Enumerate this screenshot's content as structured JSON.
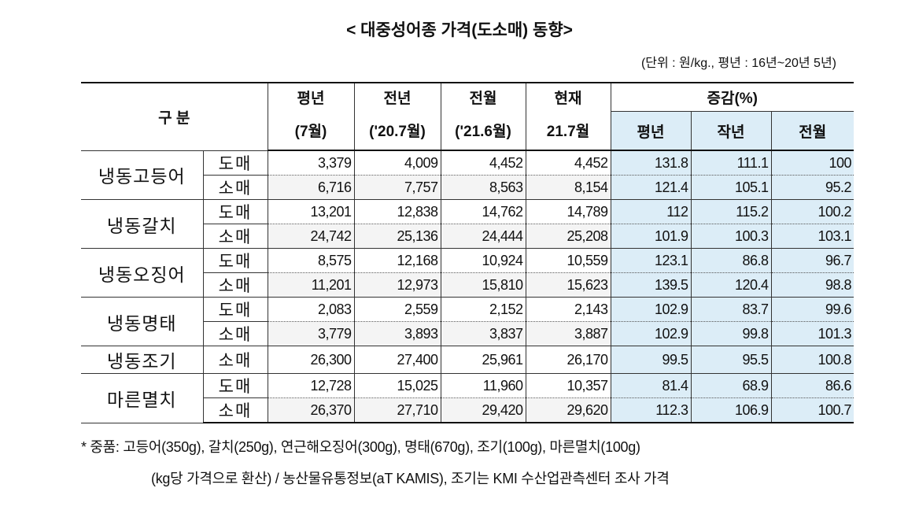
{
  "header": {
    "title": "< 대중성어종 가격(도소매) 동향>",
    "unit": "(단위 : 원/kg., 평년 : 16년~20년 5년)"
  },
  "table": {
    "head1": [
      "구 분",
      "평년",
      "전년",
      "전월",
      "현재",
      "증감(%)"
    ],
    "head2": [
      "(7월)",
      "('20.7월)",
      "('21.6월)",
      "21.7월",
      "평년",
      "작년",
      "전월"
    ],
    "groups": [
      {
        "name": "냉동고등어",
        "rows": [
          {
            "type": "도매",
            "cells": [
              "3,379",
              "4,009",
              "4,452",
              "4,452",
              "131.8",
              "111.1",
              "100"
            ]
          },
          {
            "type": "소매",
            "cells": [
              "6,716",
              "7,757",
              "8,563",
              "8,154",
              "121.4",
              "105.1",
              "95.2"
            ]
          }
        ]
      },
      {
        "name": "냉동갈치",
        "rows": [
          {
            "type": "도매",
            "cells": [
              "13,201",
              "12,838",
              "14,762",
              "14,789",
              "112",
              "115.2",
              "100.2"
            ]
          },
          {
            "type": "소매",
            "cells": [
              "24,742",
              "25,136",
              "24,444",
              "25,208",
              "101.9",
              "100.3",
              "103.1"
            ]
          }
        ]
      },
      {
        "name": "냉동오징어",
        "rows": [
          {
            "type": "도매",
            "cells": [
              "8,575",
              "12,168",
              "10,924",
              "10,559",
              "123.1",
              "86.8",
              "96.7"
            ]
          },
          {
            "type": "소매",
            "cells": [
              "11,201",
              "12,973",
              "15,810",
              "15,623",
              "139.5",
              "120.4",
              "98.8"
            ]
          }
        ]
      },
      {
        "name": "냉동명태",
        "rows": [
          {
            "type": "도매",
            "cells": [
              "2,083",
              "2,559",
              "2,152",
              "2,143",
              "102.9",
              "83.7",
              "99.6"
            ]
          },
          {
            "type": "소매",
            "cells": [
              "3,779",
              "3,893",
              "3,837",
              "3,887",
              "102.9",
              "99.8",
              "101.3"
            ]
          }
        ]
      },
      {
        "name": "냉동조기",
        "rows": [
          {
            "type": "소매",
            "cells": [
              "26,300",
              "27,400",
              "25,961",
              "26,170",
              "99.5",
              "95.5",
              "100.8"
            ]
          }
        ]
      },
      {
        "name": "마른멸치",
        "rows": [
          {
            "type": "도매",
            "cells": [
              "12,728",
              "15,025",
              "11,960",
              "10,357",
              "81.4",
              "68.9",
              "86.6"
            ]
          },
          {
            "type": "소매",
            "cells": [
              "26,370",
              "27,710",
              "29,420",
              "29,620",
              "112.3",
              "106.9",
              "100.7"
            ]
          }
        ]
      }
    ]
  },
  "notes": [
    "* 중품: 고등어(350g), 갈치(250g), 연근해오징어(300g), 명태(670g), 조기(100g), 마른멸치(100g)",
    "(kg당 가격으로 환산) / 농산물유통정보(aT KAMIS), 조기는 KMI 수산업관측센터 조사 가격"
  ]
}
